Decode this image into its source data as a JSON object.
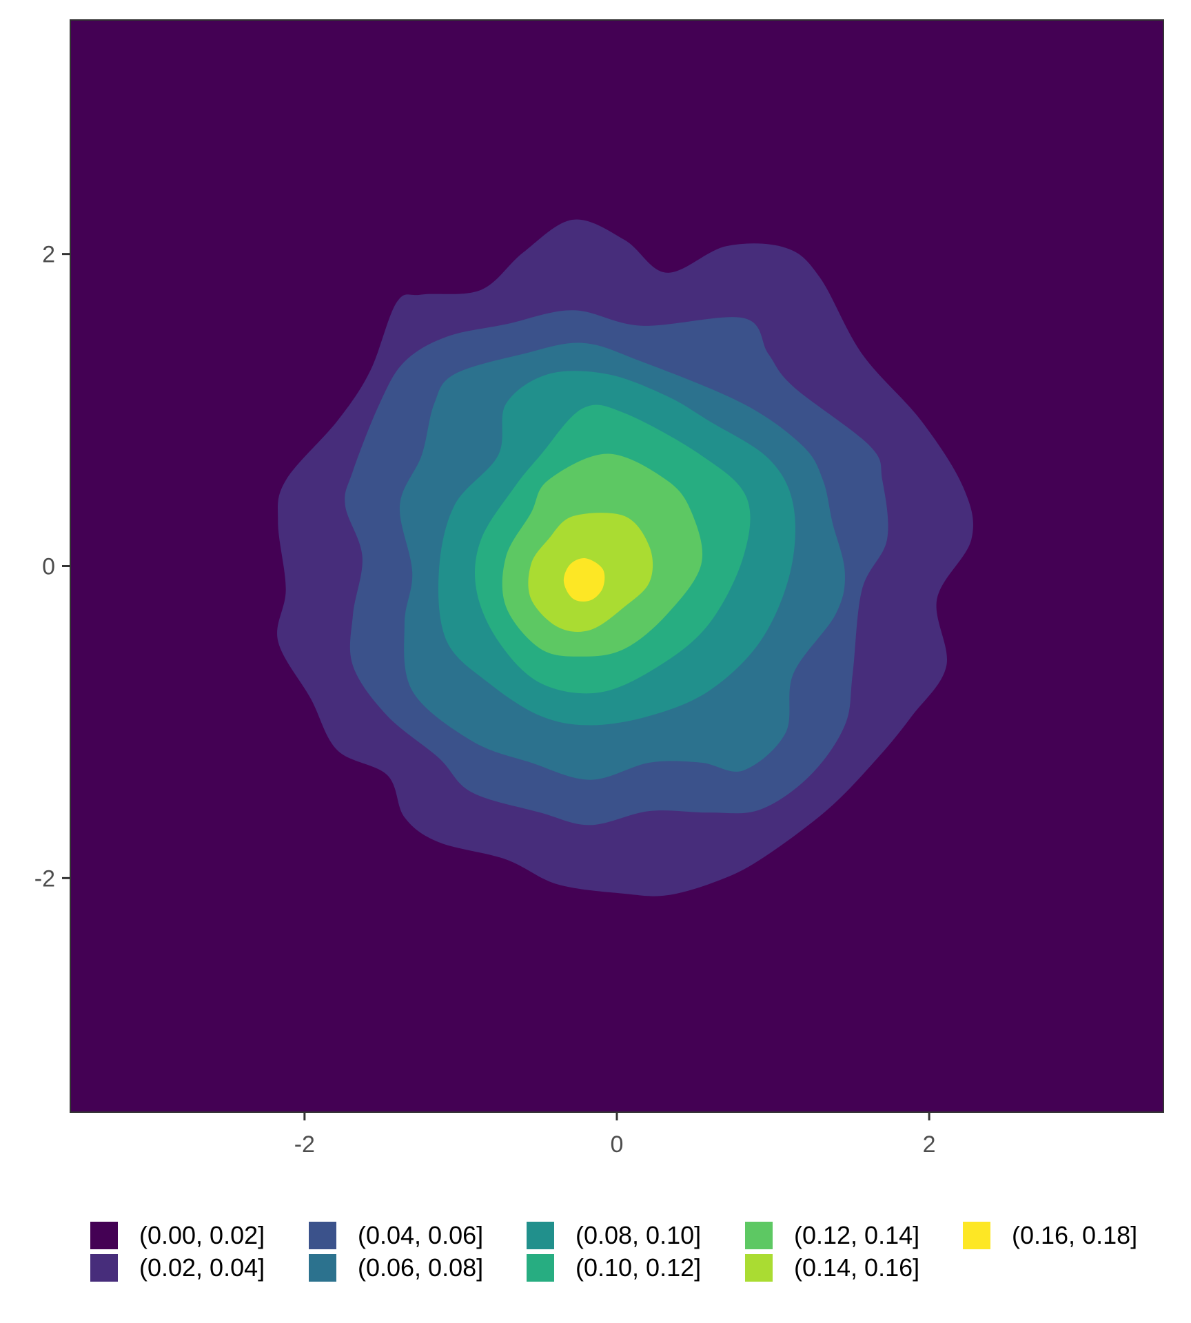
{
  "chart_data": {
    "type": "filled-contour",
    "title": "",
    "xlabel": "",
    "ylabel": "",
    "xlim": [
      -3.5,
      3.5
    ],
    "ylim": [
      -3.5,
      3.5
    ],
    "x_ticks": [
      -2,
      0,
      2
    ],
    "y_ticks": [
      -2,
      0,
      2
    ],
    "x_tick_labels": [
      "-2",
      "0",
      "2"
    ],
    "y_tick_labels": [
      "-2",
      "0",
      "2"
    ],
    "grid": false,
    "legend_position": "bottom",
    "levels": [
      {
        "label": "(0.00, 0.02]",
        "color": "#440154"
      },
      {
        "label": "(0.02, 0.04]",
        "color": "#472D7B"
      },
      {
        "label": "(0.04, 0.06]",
        "color": "#3B528B"
      },
      {
        "label": "(0.06, 0.08]",
        "color": "#2C728E"
      },
      {
        "label": "(0.08, 0.10]",
        "color": "#21908C"
      },
      {
        "label": "(0.10, 0.12]",
        "color": "#27AD81"
      },
      {
        "label": "(0.12, 0.14]",
        "color": "#5DC863"
      },
      {
        "label": "(0.14, 0.16]",
        "color": "#AADC32"
      },
      {
        "label": "(0.16, 0.18]",
        "color": "#FDE725"
      }
    ],
    "contours": [
      {
        "level": 0.02,
        "points": [
          [
            -0.28,
            2.22
          ],
          [
            0.05,
            2.09
          ],
          [
            0.32,
            1.88
          ],
          [
            0.7,
            2.05
          ],
          [
            1.08,
            2.04
          ],
          [
            1.3,
            1.85
          ],
          [
            1.57,
            1.36
          ],
          [
            1.95,
            0.93
          ],
          [
            2.22,
            0.5
          ],
          [
            2.27,
            0.17
          ],
          [
            2.05,
            -0.21
          ],
          [
            2.11,
            -0.64
          ],
          [
            1.89,
            -0.96
          ],
          [
            1.67,
            -1.23
          ],
          [
            1.35,
            -1.56
          ],
          [
            0.92,
            -1.88
          ],
          [
            0.64,
            -2.02
          ],
          [
            0.32,
            -2.11
          ],
          [
            0.05,
            -2.1
          ],
          [
            -0.38,
            -2.04
          ],
          [
            -0.71,
            -1.88
          ],
          [
            -1.14,
            -1.77
          ],
          [
            -1.36,
            -1.61
          ],
          [
            -1.47,
            -1.34
          ],
          [
            -1.79,
            -1.18
          ],
          [
            -1.96,
            -0.85
          ],
          [
            -2.17,
            -0.48
          ],
          [
            -2.12,
            -0.15
          ],
          [
            -2.17,
            0.28
          ],
          [
            -2.12,
            0.55
          ],
          [
            -1.79,
            0.93
          ],
          [
            -1.58,
            1.25
          ],
          [
            -1.41,
            1.69
          ],
          [
            -1.25,
            1.74
          ],
          [
            -0.87,
            1.77
          ],
          [
            -0.6,
            2.01
          ]
        ]
      },
      {
        "level": 0.04,
        "points": [
          [
            -0.71,
            1.55
          ],
          [
            -0.28,
            1.64
          ],
          [
            0.16,
            1.54
          ],
          [
            0.81,
            1.59
          ],
          [
            0.97,
            1.36
          ],
          [
            1.13,
            1.15
          ],
          [
            1.62,
            0.77
          ],
          [
            1.7,
            0.55
          ],
          [
            1.73,
            0.17
          ],
          [
            1.57,
            -0.15
          ],
          [
            1.51,
            -0.69
          ],
          [
            1.46,
            -1.02
          ],
          [
            1.24,
            -1.34
          ],
          [
            0.92,
            -1.56
          ],
          [
            0.59,
            -1.58
          ],
          [
            0.21,
            -1.57
          ],
          [
            -0.17,
            -1.66
          ],
          [
            -0.49,
            -1.58
          ],
          [
            -0.93,
            -1.45
          ],
          [
            -1.14,
            -1.23
          ],
          [
            -1.47,
            -0.96
          ],
          [
            -1.69,
            -0.64
          ],
          [
            -1.69,
            -0.31
          ],
          [
            -1.63,
            0.06
          ],
          [
            -1.74,
            0.39
          ],
          [
            -1.69,
            0.61
          ],
          [
            -1.52,
            1.04
          ],
          [
            -1.36,
            1.31
          ],
          [
            -1.09,
            1.47
          ]
        ]
      },
      {
        "level": 0.06,
        "points": [
          [
            -1.04,
            1.23
          ],
          [
            -0.6,
            1.36
          ],
          [
            -0.22,
            1.43
          ],
          [
            0.16,
            1.31
          ],
          [
            0.81,
            1.04
          ],
          [
            1.19,
            0.77
          ],
          [
            1.32,
            0.55
          ],
          [
            1.38,
            0.28
          ],
          [
            1.46,
            -0.04
          ],
          [
            1.4,
            -0.31
          ],
          [
            1.13,
            -0.69
          ],
          [
            1.08,
            -1.07
          ],
          [
            0.81,
            -1.31
          ],
          [
            0.54,
            -1.26
          ],
          [
            0.21,
            -1.26
          ],
          [
            -0.17,
            -1.37
          ],
          [
            -0.55,
            -1.26
          ],
          [
            -0.93,
            -1.12
          ],
          [
            -1.31,
            -0.8
          ],
          [
            -1.36,
            -0.37
          ],
          [
            -1.31,
            -0.04
          ],
          [
            -1.39,
            0.39
          ],
          [
            -1.25,
            0.71
          ],
          [
            -1.17,
            1.04
          ]
        ]
      },
      {
        "level": 0.08,
        "points": [
          [
            -0.71,
            1.04
          ],
          [
            -0.44,
            1.23
          ],
          [
            -0.06,
            1.23
          ],
          [
            0.32,
            1.09
          ],
          [
            0.59,
            0.93
          ],
          [
            0.97,
            0.69
          ],
          [
            1.13,
            0.39
          ],
          [
            1.11,
            -0.04
          ],
          [
            0.92,
            -0.48
          ],
          [
            0.59,
            -0.8
          ],
          [
            0.21,
            -0.96
          ],
          [
            -0.17,
            -1.02
          ],
          [
            -0.49,
            -0.96
          ],
          [
            -0.82,
            -0.75
          ],
          [
            -1.09,
            -0.48
          ],
          [
            -1.14,
            -0.04
          ],
          [
            -1.04,
            0.39
          ],
          [
            -0.76,
            0.71
          ]
        ]
      },
      {
        "level": 0.1,
        "points": [
          [
            -0.49,
            0.71
          ],
          [
            -0.22,
            1.01
          ],
          [
            0.05,
            0.98
          ],
          [
            0.54,
            0.71
          ],
          [
            0.83,
            0.44
          ],
          [
            0.81,
            0.06
          ],
          [
            0.59,
            -0.37
          ],
          [
            0.27,
            -0.64
          ],
          [
            -0.11,
            -0.81
          ],
          [
            -0.49,
            -0.75
          ],
          [
            -0.76,
            -0.48
          ],
          [
            -0.9,
            -0.15
          ],
          [
            -0.87,
            0.17
          ],
          [
            -0.66,
            0.5
          ]
        ]
      },
      {
        "level": 0.12,
        "points": [
          [
            -0.44,
            0.55
          ],
          [
            -0.06,
            0.72
          ],
          [
            0.32,
            0.55
          ],
          [
            0.48,
            0.34
          ],
          [
            0.54,
            0.01
          ],
          [
            0.32,
            -0.31
          ],
          [
            0.05,
            -0.53
          ],
          [
            -0.22,
            -0.58
          ],
          [
            -0.49,
            -0.53
          ],
          [
            -0.71,
            -0.26
          ],
          [
            -0.71,
            0.06
          ],
          [
            -0.55,
            0.34
          ]
        ]
      },
      {
        "level": 0.14,
        "points": [
          [
            -0.28,
            0.32
          ],
          [
            0.05,
            0.32
          ],
          [
            0.21,
            0.12
          ],
          [
            0.21,
            -0.1
          ],
          [
            0.05,
            -0.26
          ],
          [
            -0.17,
            -0.41
          ],
          [
            -0.38,
            -0.39
          ],
          [
            -0.55,
            -0.21
          ],
          [
            -0.55,
            0.01
          ],
          [
            -0.44,
            0.17
          ]
        ]
      },
      {
        "level": 0.16,
        "points": [
          [
            -0.3,
            0.01
          ],
          [
            -0.2,
            0.05
          ],
          [
            -0.09,
            -0.02
          ],
          [
            -0.09,
            -0.14
          ],
          [
            -0.17,
            -0.22
          ],
          [
            -0.28,
            -0.21
          ],
          [
            -0.34,
            -0.1
          ]
        ]
      }
    ]
  }
}
